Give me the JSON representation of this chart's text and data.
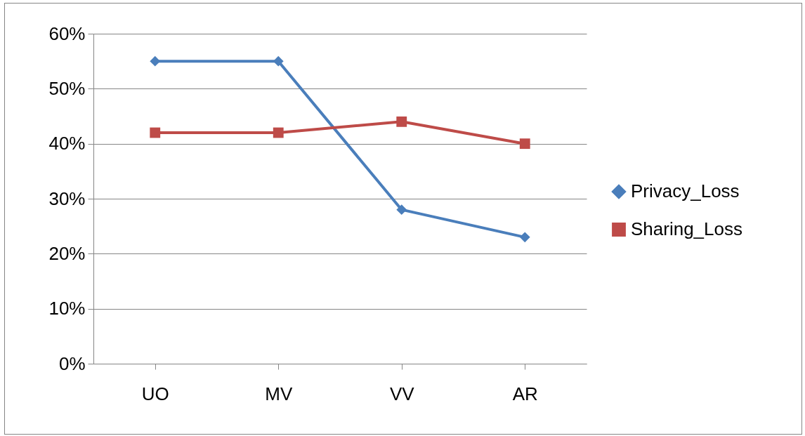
{
  "chart_data": {
    "type": "line",
    "categories": [
      "UO",
      "MV",
      "VV",
      "AR"
    ],
    "series": [
      {
        "name": "Privacy_Loss",
        "color": "#4a7ebb",
        "marker": "diamond",
        "values": [
          55,
          55,
          28,
          23
        ]
      },
      {
        "name": "Sharing_Loss",
        "color": "#be4b48",
        "marker": "square",
        "values": [
          42,
          42,
          44,
          40
        ]
      }
    ],
    "ylim": [
      0,
      60
    ],
    "yticks": [
      {
        "value": 0,
        "label": "0%"
      },
      {
        "value": 10,
        "label": "10%"
      },
      {
        "value": 20,
        "label": "20%"
      },
      {
        "value": 30,
        "label": "30%"
      },
      {
        "value": 40,
        "label": "40%"
      },
      {
        "value": 50,
        "label": "50%"
      },
      {
        "value": 60,
        "label": "60%"
      }
    ],
    "grid": "y",
    "legend": "right",
    "line_style": "solid"
  }
}
